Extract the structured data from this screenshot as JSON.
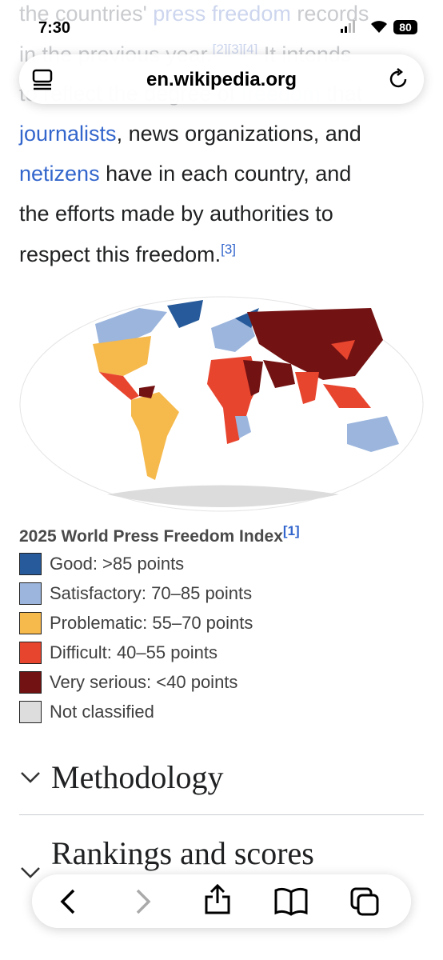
{
  "status_bar": {
    "time": "7:30",
    "battery": "80"
  },
  "address_bar": {
    "url": "en.wikipedia.org"
  },
  "article": {
    "faded_lines": [
      [
        "the countries' ",
        "press freedom",
        " records"
      ],
      [
        "in the previous year.",
        "[2][3][4]",
        " It intends"
      ],
      [
        "to reflect the degree of ",
        "freedom",
        " that"
      ]
    ],
    "paragraph": {
      "link1": "journalists",
      "text1": ", news organizations, and",
      "link2": "netizens",
      "text2": " have in each country, and",
      "text3": "the efforts made by authorities to",
      "text4": "respect this freedom.",
      "ref": "[3]"
    },
    "figure": {
      "caption": "2025 World Press Freedom Index",
      "ref": "[1]",
      "legend": [
        {
          "label": "Good: >85 points",
          "color": "#275a9a"
        },
        {
          "label": "Satisfactory: 70–85 points",
          "color": "#9bb5dd"
        },
        {
          "label": "Problematic: 55–70 points",
          "color": "#f6b94c"
        },
        {
          "label": "Difficult: 40–55 points",
          "color": "#e8452f"
        },
        {
          "label": "Very serious: <40 points",
          "color": "#731212"
        },
        {
          "label": "Not classified",
          "color": "#dddddd"
        }
      ]
    },
    "sections": [
      "Methodology",
      "Rankings and scores"
    ]
  }
}
